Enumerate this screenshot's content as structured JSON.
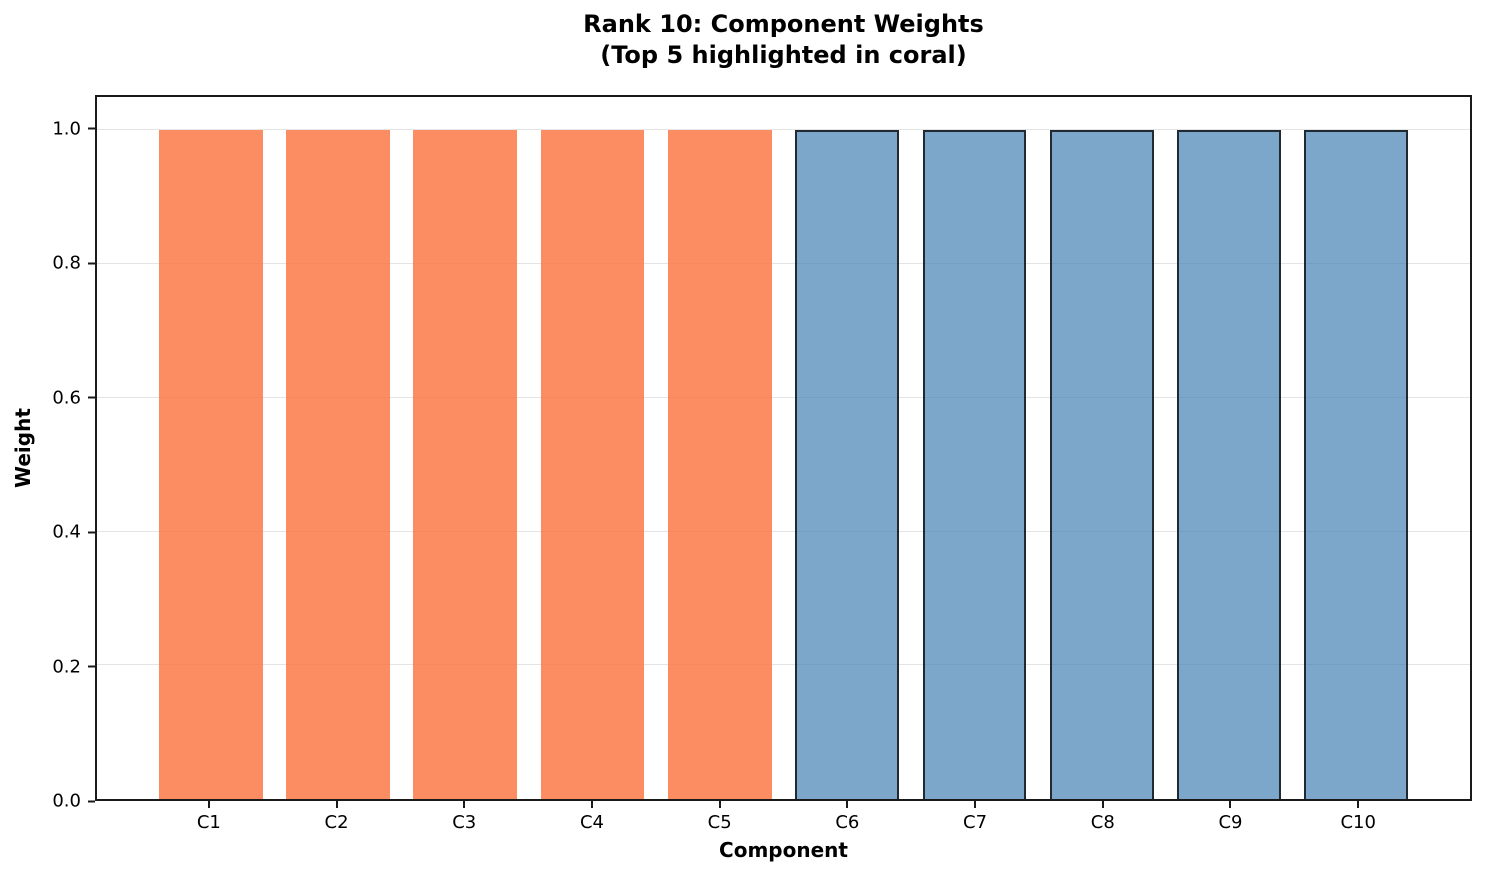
{
  "chart_data": {
    "type": "bar",
    "title": "Rank 10: Component Weights",
    "subtitle": "(Top 5 highlighted in coral)",
    "xlabel": "Component",
    "ylabel": "Weight",
    "categories": [
      "C1",
      "C2",
      "C3",
      "C4",
      "C5",
      "C6",
      "C7",
      "C8",
      "C9",
      "C10"
    ],
    "values": [
      1.0,
      1.0,
      1.0,
      1.0,
      1.0,
      1.0,
      1.0,
      1.0,
      1.0,
      1.0
    ],
    "bars": [
      {
        "label": "C1",
        "value": 1.0,
        "group": "highlight"
      },
      {
        "label": "C2",
        "value": 1.0,
        "group": "highlight"
      },
      {
        "label": "C3",
        "value": 1.0,
        "group": "highlight"
      },
      {
        "label": "C4",
        "value": 1.0,
        "group": "highlight"
      },
      {
        "label": "C5",
        "value": 1.0,
        "group": "highlight"
      },
      {
        "label": "C6",
        "value": 1.0,
        "group": "other"
      },
      {
        "label": "C7",
        "value": 1.0,
        "group": "other"
      },
      {
        "label": "C8",
        "value": 1.0,
        "group": "other"
      },
      {
        "label": "C9",
        "value": 1.0,
        "group": "other"
      },
      {
        "label": "C10",
        "value": 1.0,
        "group": "other"
      }
    ],
    "ylim": [
      0,
      1.05
    ],
    "ytick_values": [
      0.0,
      0.2,
      0.4,
      0.6,
      0.8,
      1.0
    ],
    "ytick_labels": [
      "0.0",
      "0.2",
      "0.4",
      "0.6",
      "0.8",
      "1.0"
    ],
    "grid": "horizontal",
    "legend": "none",
    "style": {
      "highlight_fill": "rgba(251,111,58,0.8)",
      "highlight_fill_hex_on_white": "#fc8c61",
      "highlight_edge": "none",
      "other_fill": "rgba(70,130,180,0.7)",
      "other_fill_hex_on_white": "#7aa7cb",
      "other_edge": "rgba(0,0,0,0.75)",
      "grid_color": "#e4e4e4",
      "spine_color": "#1a1a1a",
      "text_color": "#000000",
      "background": "#ffffff"
    }
  }
}
